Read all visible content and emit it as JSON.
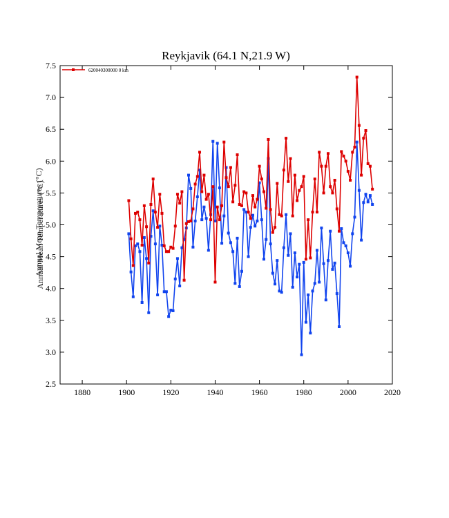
{
  "chart_data": {
    "type": "line",
    "title": "Reykjavik (64.1 N,21.9 W)",
    "ylabel": "Annual Mean Temperatures (°C)",
    "ylabel_overprint": "Annual Mean Temperatures (°C)",
    "xlabel": "",
    "xlim": [
      1870,
      2020
    ],
    "ylim": [
      2.5,
      7.5
    ],
    "x_ticks": [
      1880,
      1900,
      1920,
      1940,
      1960,
      1980,
      2000,
      2020
    ],
    "y_ticks": [
      "2.5",
      "3.0",
      "3.5",
      "4.0",
      "4.5",
      "5.0",
      "5.5",
      "6.0",
      "6.5",
      "7.0",
      "7.5"
    ],
    "legend": {
      "position": "top-left",
      "label": "620040300000  0 km"
    },
    "grid": false,
    "colors": {
      "red": "#dd0000",
      "blue": "#1144ee",
      "axis": "#000000"
    },
    "series": [
      {
        "name": "620040300000  0 km",
        "color": "#dd0000",
        "x": [
          1901,
          1902,
          1903,
          1904,
          1905,
          1906,
          1907,
          1908,
          1909,
          1910,
          1911,
          1912,
          1913,
          1914,
          1915,
          1916,
          1917,
          1918,
          1919,
          1920,
          1921,
          1922,
          1923,
          1924,
          1925,
          1926,
          1927,
          1928,
          1929,
          1930,
          1931,
          1932,
          1933,
          1934,
          1935,
          1936,
          1937,
          1938,
          1939,
          1940,
          1941,
          1942,
          1943,
          1944,
          1945,
          1946,
          1947,
          1948,
          1949,
          1950,
          1951,
          1952,
          1953,
          1954,
          1955,
          1956,
          1957,
          1958,
          1959,
          1960,
          1961,
          1962,
          1963,
          1964,
          1965,
          1966,
          1967,
          1968,
          1969,
          1970,
          1971,
          1972,
          1973,
          1974,
          1975,
          1976,
          1977,
          1978,
          1979,
          1980,
          1981,
          1982,
          1983,
          1984,
          1985,
          1986,
          1987,
          1988,
          1989,
          1990,
          1991,
          1992,
          1993,
          1994,
          1995,
          1996,
          1997,
          1998,
          1999,
          2000,
          2001,
          2002,
          2003,
          2004,
          2005,
          2006,
          2007,
          2008,
          2009,
          2010,
          2011
        ],
        "values": [
          5.38,
          4.78,
          4.36,
          5.18,
          5.2,
          5.08,
          4.68,
          5.3,
          4.97,
          4.4,
          5.32,
          5.72,
          5.2,
          4.96,
          5.48,
          5.18,
          4.67,
          4.58,
          4.58,
          4.65,
          4.63,
          4.98,
          5.48,
          5.34,
          5.52,
          4.13,
          5.02,
          5.05,
          5.06,
          5.25,
          5.64,
          5.76,
          6.14,
          5.52,
          5.78,
          5.4,
          5.48,
          5.08,
          5.6,
          4.1,
          5.28,
          5.08,
          5.3,
          6.3,
          5.74,
          5.6,
          5.9,
          5.36,
          5.62,
          6.1,
          5.32,
          5.3,
          5.52,
          5.5,
          5.2,
          5.1,
          5.46,
          5.28,
          5.4,
          5.92,
          5.72,
          5.52,
          5.26,
          6.34,
          5.24,
          4.88,
          4.96,
          5.65,
          5.16,
          5.14,
          5.86,
          6.36,
          5.68,
          6.04,
          5.14,
          5.78,
          5.38,
          5.54,
          5.6,
          5.76,
          4.46,
          5.08,
          4.48,
          5.2,
          5.72,
          5.2,
          6.14,
          5.92,
          5.5,
          5.92,
          6.12,
          5.6,
          5.5,
          5.7,
          5.25,
          4.9,
          6.15,
          6.08,
          6.0,
          5.84,
          5.7,
          6.14,
          6.22,
          7.32,
          6.56,
          5.78,
          6.36,
          6.48,
          5.96,
          5.92,
          5.56
        ]
      },
      {
        "name": "",
        "color": "#1144ee",
        "x": [
          1901,
          1902,
          1903,
          1904,
          1905,
          1906,
          1907,
          1908,
          1909,
          1910,
          1911,
          1912,
          1913,
          1914,
          1915,
          1916,
          1917,
          1918,
          1919,
          1920,
          1921,
          1922,
          1923,
          1924,
          1925,
          1926,
          1927,
          1928,
          1929,
          1930,
          1931,
          1932,
          1933,
          1934,
          1935,
          1936,
          1937,
          1938,
          1939,
          1940,
          1941,
          1942,
          1943,
          1944,
          1945,
          1946,
          1947,
          1948,
          1949,
          1950,
          1951,
          1952,
          1953,
          1954,
          1955,
          1956,
          1957,
          1958,
          1959,
          1960,
          1961,
          1962,
          1963,
          1964,
          1965,
          1966,
          1967,
          1968,
          1969,
          1970,
          1971,
          1972,
          1973,
          1974,
          1975,
          1976,
          1977,
          1978,
          1979,
          1980,
          1981,
          1982,
          1983,
          1984,
          1985,
          1986,
          1987,
          1988,
          1989,
          1990,
          1991,
          1992,
          1993,
          1994,
          1995,
          1996,
          1997,
          1998,
          1999,
          2000,
          2001,
          2002,
          2003,
          2004,
          2005,
          2006,
          2007,
          2008,
          2009,
          2010,
          2011
        ],
        "values": [
          4.86,
          4.26,
          3.87,
          4.67,
          4.7,
          4.58,
          3.78,
          4.8,
          4.47,
          3.62,
          4.82,
          5.22,
          4.7,
          3.9,
          4.98,
          4.68,
          3.95,
          3.95,
          3.56,
          3.66,
          3.65,
          4.15,
          4.47,
          4.04,
          4.64,
          4.77,
          4.95,
          5.78,
          5.57,
          4.65,
          5.06,
          5.44,
          5.86,
          5.08,
          5.28,
          5.1,
          4.6,
          5.16,
          6.31,
          5.06,
          6.28,
          5.58,
          4.71,
          5.14,
          5.9,
          4.87,
          4.72,
          4.58,
          4.08,
          4.79,
          4.03,
          4.27,
          5.24,
          5.2,
          4.5,
          4.96,
          5.15,
          4.98,
          5.06,
          5.66,
          5.08,
          4.46,
          4.77,
          6.04,
          4.7,
          4.24,
          4.07,
          4.44,
          3.96,
          3.94,
          4.64,
          5.16,
          4.52,
          4.86,
          4.02,
          4.56,
          4.18,
          4.38,
          2.96,
          4.41,
          3.47,
          3.9,
          3.3,
          3.96,
          4.08,
          4.6,
          4.1,
          4.95,
          4.39,
          3.82,
          4.44,
          4.9,
          4.3,
          4.4,
          3.92,
          3.4,
          4.94,
          4.72,
          4.67,
          4.56,
          4.35,
          4.86,
          5.12,
          6.3,
          5.54,
          4.76,
          5.35,
          5.48,
          5.36,
          5.46,
          5.32
        ]
      }
    ]
  }
}
